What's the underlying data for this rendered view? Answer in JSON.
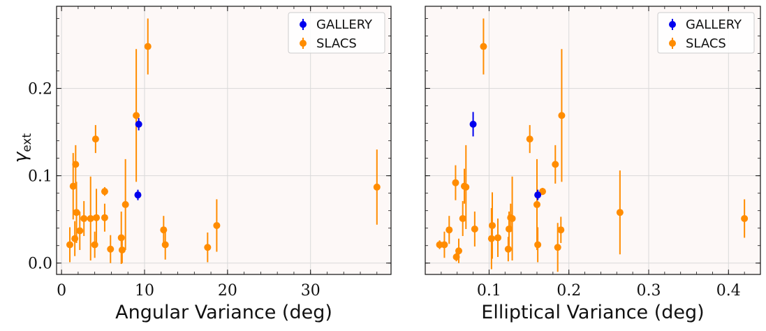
{
  "colors": {
    "gallery": "#0000ee",
    "slacs": "#ff8c00",
    "panel_bg": "#fdf8f7",
    "grid": "#d9d9d9"
  },
  "ylabel": {
    "main": "γ",
    "sub": "ext"
  },
  "chart_data": [
    {
      "type": "scatter",
      "xlabel": "Angular Variance (deg)",
      "xlim": [
        -0.6,
        39.7
      ],
      "ylim": [
        -0.013,
        0.294
      ],
      "xticks": [
        0,
        10,
        20,
        30
      ],
      "xtick_labels": [
        "0",
        "10",
        "20",
        "30"
      ],
      "yticks": [
        0.0,
        0.1,
        0.2
      ],
      "ytick_labels": [
        "0.0",
        "0.1",
        "0.2"
      ],
      "grid": true,
      "legend": "top-right",
      "series": [
        {
          "name": "GALLERY",
          "color_key": "gallery",
          "points": [
            {
              "x": 9.3,
              "y": 0.159,
              "err": 0.007
            },
            {
              "x": 9.2,
              "y": 0.078,
              "err": 0.006
            }
          ]
        },
        {
          "name": "SLACS",
          "color_key": "slacs",
          "points": [
            {
              "x": 1.0,
              "y": 0.021,
              "err": 0.02
            },
            {
              "x": 1.4,
              "y": 0.088,
              "err": 0.038
            },
            {
              "x": 1.6,
              "y": 0.028,
              "err": 0.02
            },
            {
              "x": 1.7,
              "y": 0.113,
              "err": 0.022
            },
            {
              "x": 1.8,
              "y": 0.058,
              "err": 0.035
            },
            {
              "x": 2.2,
              "y": 0.037,
              "err": 0.022
            },
            {
              "x": 2.7,
              "y": 0.051,
              "err": 0.02
            },
            {
              "x": 3.5,
              "y": 0.051,
              "err": 0.048
            },
            {
              "x": 4.0,
              "y": 0.021,
              "err": 0.015
            },
            {
              "x": 4.1,
              "y": 0.142,
              "err": 0.016
            },
            {
              "x": 4.2,
              "y": 0.052,
              "err": 0.033
            },
            {
              "x": 5.2,
              "y": 0.082,
              "err": 0.005
            },
            {
              "x": 5.2,
              "y": 0.052,
              "err": 0.016
            },
            {
              "x": 5.9,
              "y": 0.016,
              "err": 0.016
            },
            {
              "x": 7.2,
              "y": 0.029,
              "err": 0.03
            },
            {
              "x": 7.3,
              "y": 0.015,
              "err": 0.015
            },
            {
              "x": 7.7,
              "y": 0.067,
              "err": 0.052
            },
            {
              "x": 9.0,
              "y": 0.169,
              "err": 0.076
            },
            {
              "x": 10.4,
              "y": 0.248,
              "err": 0.032
            },
            {
              "x": 12.3,
              "y": 0.038,
              "err": 0.016
            },
            {
              "x": 12.5,
              "y": 0.021,
              "err": 0.017
            },
            {
              "x": 17.6,
              "y": 0.018,
              "err": 0.017
            },
            {
              "x": 18.7,
              "y": 0.043,
              "err": 0.03
            },
            {
              "x": 38.0,
              "y": 0.087,
              "err": 0.043
            }
          ]
        }
      ]
    },
    {
      "type": "scatter",
      "xlabel": "Elliptical Variance (deg)",
      "xlim": [
        0.02,
        0.44
      ],
      "ylim": [
        -0.013,
        0.294
      ],
      "xticks": [
        0.1,
        0.2,
        0.3,
        0.4
      ],
      "xtick_labels": [
        "0.1",
        "0.2",
        "0.3",
        "0.4"
      ],
      "yticks": [
        0.0,
        0.1,
        0.2
      ],
      "ytick_labels": [
        "",
        "",
        ""
      ],
      "grid": true,
      "legend": "top-right",
      "series": [
        {
          "name": "GALLERY",
          "color_key": "gallery",
          "points": [
            {
              "x": 0.08,
              "y": 0.159,
              "err": 0.014
            },
            {
              "x": 0.161,
              "y": 0.078,
              "err": 0.006
            }
          ]
        },
        {
          "name": "SLACS",
          "color_key": "slacs",
          "points": [
            {
              "x": 0.038,
              "y": 0.021,
              "err": 0.005
            },
            {
              "x": 0.044,
              "y": 0.021,
              "err": 0.015
            },
            {
              "x": 0.05,
              "y": 0.038,
              "err": 0.016
            },
            {
              "x": 0.058,
              "y": 0.092,
              "err": 0.02
            },
            {
              "x": 0.059,
              "y": 0.007,
              "err": 0.005
            },
            {
              "x": 0.062,
              "y": 0.014,
              "err": 0.014
            },
            {
              "x": 0.067,
              "y": 0.051,
              "err": 0.02
            },
            {
              "x": 0.069,
              "y": 0.088,
              "err": 0.02
            },
            {
              "x": 0.071,
              "y": 0.087,
              "err": 0.048
            },
            {
              "x": 0.082,
              "y": 0.039,
              "err": 0.02
            },
            {
              "x": 0.093,
              "y": 0.248,
              "err": 0.032
            },
            {
              "x": 0.103,
              "y": 0.028,
              "err": 0.035
            },
            {
              "x": 0.104,
              "y": 0.043,
              "err": 0.038
            },
            {
              "x": 0.111,
              "y": 0.029,
              "err": 0.022
            },
            {
              "x": 0.124,
              "y": 0.016,
              "err": 0.014
            },
            {
              "x": 0.125,
              "y": 0.039,
              "err": 0.02
            },
            {
              "x": 0.127,
              "y": 0.052,
              "err": 0.016
            },
            {
              "x": 0.129,
              "y": 0.051,
              "err": 0.048
            },
            {
              "x": 0.151,
              "y": 0.142,
              "err": 0.016
            },
            {
              "x": 0.16,
              "y": 0.067,
              "err": 0.052
            },
            {
              "x": 0.161,
              "y": 0.021,
              "err": 0.02
            },
            {
              "x": 0.167,
              "y": 0.082,
              "err": 0.004
            },
            {
              "x": 0.183,
              "y": 0.113,
              "err": 0.022
            },
            {
              "x": 0.186,
              "y": 0.018,
              "err": 0.028
            },
            {
              "x": 0.19,
              "y": 0.038,
              "err": 0.015
            },
            {
              "x": 0.191,
              "y": 0.169,
              "err": 0.076
            },
            {
              "x": 0.264,
              "y": 0.058,
              "err": 0.048
            },
            {
              "x": 0.42,
              "y": 0.051,
              "err": 0.022
            }
          ]
        }
      ]
    }
  ]
}
